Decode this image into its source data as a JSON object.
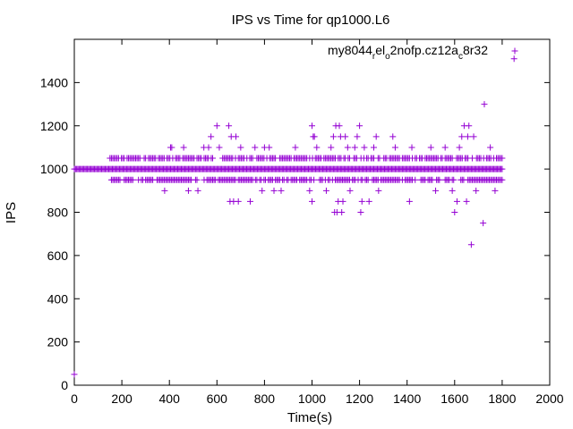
{
  "chart_data": {
    "type": "scatter",
    "title": "IPS vs Time for qp1000.L6",
    "xlabel": "Time(s)",
    "ylabel": "IPS",
    "xlim": [
      0,
      2000
    ],
    "ylim": [
      0,
      1600
    ],
    "x_ticks": [
      0,
      200,
      400,
      600,
      800,
      1000,
      1200,
      1400,
      1600,
      1800,
      2000
    ],
    "y_ticks": [
      0,
      200,
      400,
      600,
      800,
      1000,
      1200,
      1400
    ],
    "grid": false,
    "legend_position": "top-right",
    "marker": "plus",
    "series": [
      {
        "name_parts": [
          "my8044",
          "r",
          "el",
          "o",
          "2nofp.cz12a",
          "c",
          "8r32"
        ],
        "color": "#9400d3",
        "dense_band": {
          "x_range": [
            0,
            1800
          ],
          "y": 1000
        },
        "scattered_band_upper": {
          "x_range": [
            150,
            1800
          ],
          "y": 1050
        },
        "scattered_band_lower": {
          "x_range": [
            150,
            1800
          ],
          "y": 950
        },
        "points": [
          [
            0,
            50
          ],
          [
            380,
            900
          ],
          [
            405,
            1100
          ],
          [
            410,
            1100
          ],
          [
            460,
            1100
          ],
          [
            480,
            900
          ],
          [
            520,
            900
          ],
          [
            545,
            1100
          ],
          [
            565,
            1100
          ],
          [
            575,
            1150
          ],
          [
            600,
            1200
          ],
          [
            610,
            1100
          ],
          [
            650,
            1200
          ],
          [
            655,
            850
          ],
          [
            660,
            1150
          ],
          [
            670,
            850
          ],
          [
            680,
            1150
          ],
          [
            690,
            850
          ],
          [
            700,
            1100
          ],
          [
            740,
            850
          ],
          [
            760,
            1100
          ],
          [
            790,
            900
          ],
          [
            800,
            1100
          ],
          [
            820,
            1100
          ],
          [
            840,
            900
          ],
          [
            870,
            900
          ],
          [
            930,
            1100
          ],
          [
            990,
            900
          ],
          [
            1000,
            1200
          ],
          [
            1000,
            850
          ],
          [
            1005,
            1150
          ],
          [
            1010,
            1150
          ],
          [
            1020,
            1100
          ],
          [
            1060,
            900
          ],
          [
            1080,
            1100
          ],
          [
            1090,
            1150
          ],
          [
            1095,
            800
          ],
          [
            1100,
            1200
          ],
          [
            1105,
            800
          ],
          [
            1110,
            850
          ],
          [
            1115,
            1200
          ],
          [
            1120,
            1150
          ],
          [
            1125,
            800
          ],
          [
            1130,
            850
          ],
          [
            1140,
            1150
          ],
          [
            1150,
            1100
          ],
          [
            1160,
            900
          ],
          [
            1180,
            1100
          ],
          [
            1190,
            1150
          ],
          [
            1200,
            1200
          ],
          [
            1205,
            800
          ],
          [
            1210,
            850
          ],
          [
            1220,
            1100
          ],
          [
            1240,
            850
          ],
          [
            1260,
            1100
          ],
          [
            1270,
            1150
          ],
          [
            1280,
            900
          ],
          [
            1340,
            1150
          ],
          [
            1350,
            1100
          ],
          [
            1410,
            850
          ],
          [
            1420,
            1100
          ],
          [
            1500,
            1100
          ],
          [
            1520,
            900
          ],
          [
            1560,
            1100
          ],
          [
            1590,
            900
          ],
          [
            1600,
            800
          ],
          [
            1610,
            850
          ],
          [
            1620,
            1100
          ],
          [
            1630,
            1150
          ],
          [
            1640,
            1200
          ],
          [
            1650,
            850
          ],
          [
            1655,
            1150
          ],
          [
            1660,
            1200
          ],
          [
            1670,
            650
          ],
          [
            1680,
            1150
          ],
          [
            1690,
            900
          ],
          [
            1720,
            750
          ],
          [
            1725,
            1300
          ],
          [
            1750,
            1100
          ],
          [
            1770,
            900
          ],
          [
            1850,
            1510
          ]
        ]
      }
    ]
  }
}
